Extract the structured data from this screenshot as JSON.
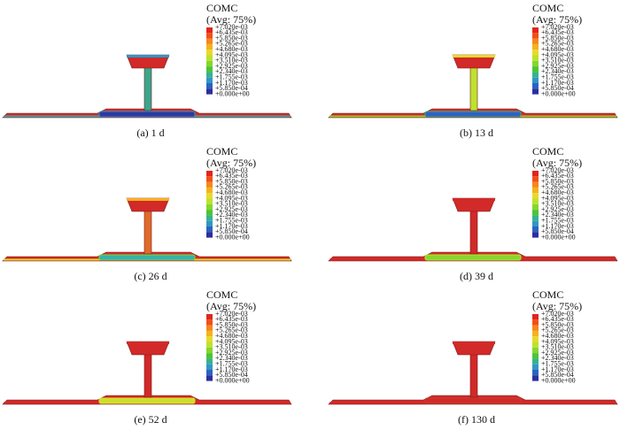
{
  "legend": {
    "title": "COMC",
    "subtitle": "(Avg: 75%)",
    "labels": [
      "+7.020e-03",
      "+6.435e-03",
      "+5.850e-03",
      "+5.265e-03",
      "+4.680e-03",
      "+4.095e-03",
      "+3.510e-03",
      "+2.925e-03",
      "+2.340e-03",
      "+1.755e-03",
      "+1.170e-03",
      "+5.850e-04",
      "+0.000e+00"
    ]
  },
  "panels": [
    {
      "caption": "(a) 1 d"
    },
    {
      "caption": "(b) 13 d"
    },
    {
      "caption": "(c) 26 d"
    },
    {
      "caption": "(d) 39 d"
    },
    {
      "caption": "(e) 52 d"
    },
    {
      "caption": "(f) 130 d"
    }
  ]
}
